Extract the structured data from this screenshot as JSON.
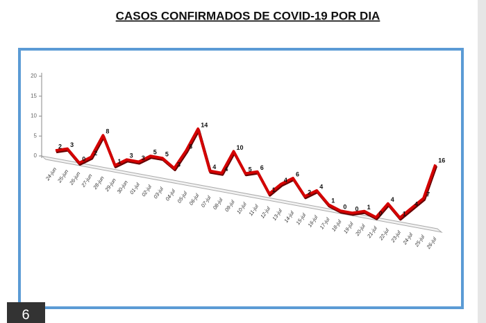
{
  "chart_data": {
    "type": "line",
    "title": "CASOS CONFIRMADOS DE COVID-19 POR DIA",
    "categories": [
      "24-jun",
      "25-jun",
      "26-jun",
      "27-jun",
      "28-jun",
      "29-jun",
      "30-jun",
      "01-jul",
      "02-jul",
      "03-jul",
      "04-jul",
      "05-jul",
      "06-jul",
      "07-jul",
      "08-jul",
      "09-jul",
      "10-jul",
      "11-jul",
      "12-jul",
      "13-jul",
      "14-jul",
      "15-jul",
      "16-jul",
      "17-jul",
      "18-jul",
      "19-jul",
      "20-jul",
      "21-jul",
      "22-jul",
      "23-jul",
      "24-jul",
      "25-jul",
      "26-jul"
    ],
    "values": [
      2,
      3,
      0,
      2,
      8,
      1,
      3,
      3,
      5,
      5,
      3,
      8,
      14,
      4,
      4,
      10,
      5,
      6,
      1,
      4,
      6,
      2,
      4,
      1,
      0,
      0,
      1,
      0,
      4,
      1,
      4,
      7,
      16
    ],
    "color": "#d40000",
    "ylim": [
      0,
      20
    ],
    "yticks": [
      0,
      5,
      10,
      15,
      20
    ]
  },
  "page_number": "6"
}
